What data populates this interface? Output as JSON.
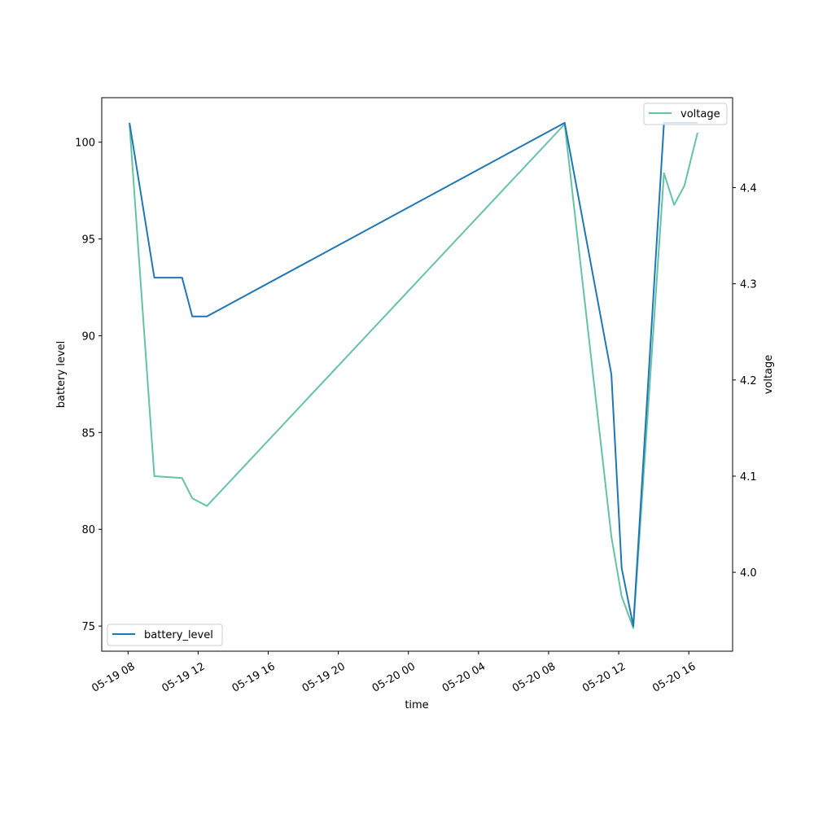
{
  "chart_data": {
    "type": "line",
    "xlabel": "time",
    "ylabel_left": "battery level",
    "ylabel_right": "voltage",
    "x_ticks": [
      "05-19 08",
      "05-19 12",
      "05-19 16",
      "05-19 20",
      "05-20 00",
      "05-20 04",
      "05-20 08",
      "05-20 12",
      "05-20 16"
    ],
    "xlim": [
      "2024-05-19 06:30",
      "2024-05-20 18:30"
    ],
    "left_ticks": [
      75,
      80,
      85,
      90,
      95,
      100
    ],
    "left_ylim": [
      73.7,
      102.3
    ],
    "right_ticks": [
      "4.0",
      "4.1",
      "4.2",
      "4.3",
      "4.4"
    ],
    "right_ylim": [
      3.918,
      4.4935
    ],
    "series": [
      {
        "name": "battery_level",
        "axis": "left",
        "color": "#1f77b4",
        "x": [
          "2024-05-19 08:05",
          "2024-05-19 09:30",
          "2024-05-19 11:05",
          "2024-05-19 11:40",
          "2024-05-19 12:30",
          "2024-05-20 08:55",
          "2024-05-20 11:35",
          "2024-05-20 12:10",
          "2024-05-20 12:50",
          "2024-05-20 14:35",
          "2024-05-20 15:10",
          "2024-05-20 15:45",
          "2024-05-20 16:30"
        ],
        "y": [
          101,
          93,
          93,
          91,
          91,
          101,
          88,
          78,
          75,
          101,
          101,
          101,
          101
        ]
      },
      {
        "name": "voltage",
        "axis": "right",
        "color": "#66c2a5",
        "x": [
          "2024-05-19 08:05",
          "2024-05-19 09:30",
          "2024-05-19 11:05",
          "2024-05-19 11:40",
          "2024-05-19 12:30",
          "2024-05-20 08:55",
          "2024-05-20 11:35",
          "2024-05-20 12:10",
          "2024-05-20 12:50",
          "2024-05-20 14:35",
          "2024-05-20 15:10",
          "2024-05-20 15:45",
          "2024-05-20 16:30"
        ],
        "y": [
          4.466,
          4.1,
          4.098,
          4.077,
          4.069,
          4.466,
          4.037,
          3.975,
          3.942,
          4.415,
          4.382,
          4.402,
          4.457
        ]
      }
    ],
    "legends": [
      {
        "series": "battery_level",
        "placement": "lower-left"
      },
      {
        "series": "voltage",
        "placement": "upper-right"
      }
    ],
    "grid": false
  }
}
